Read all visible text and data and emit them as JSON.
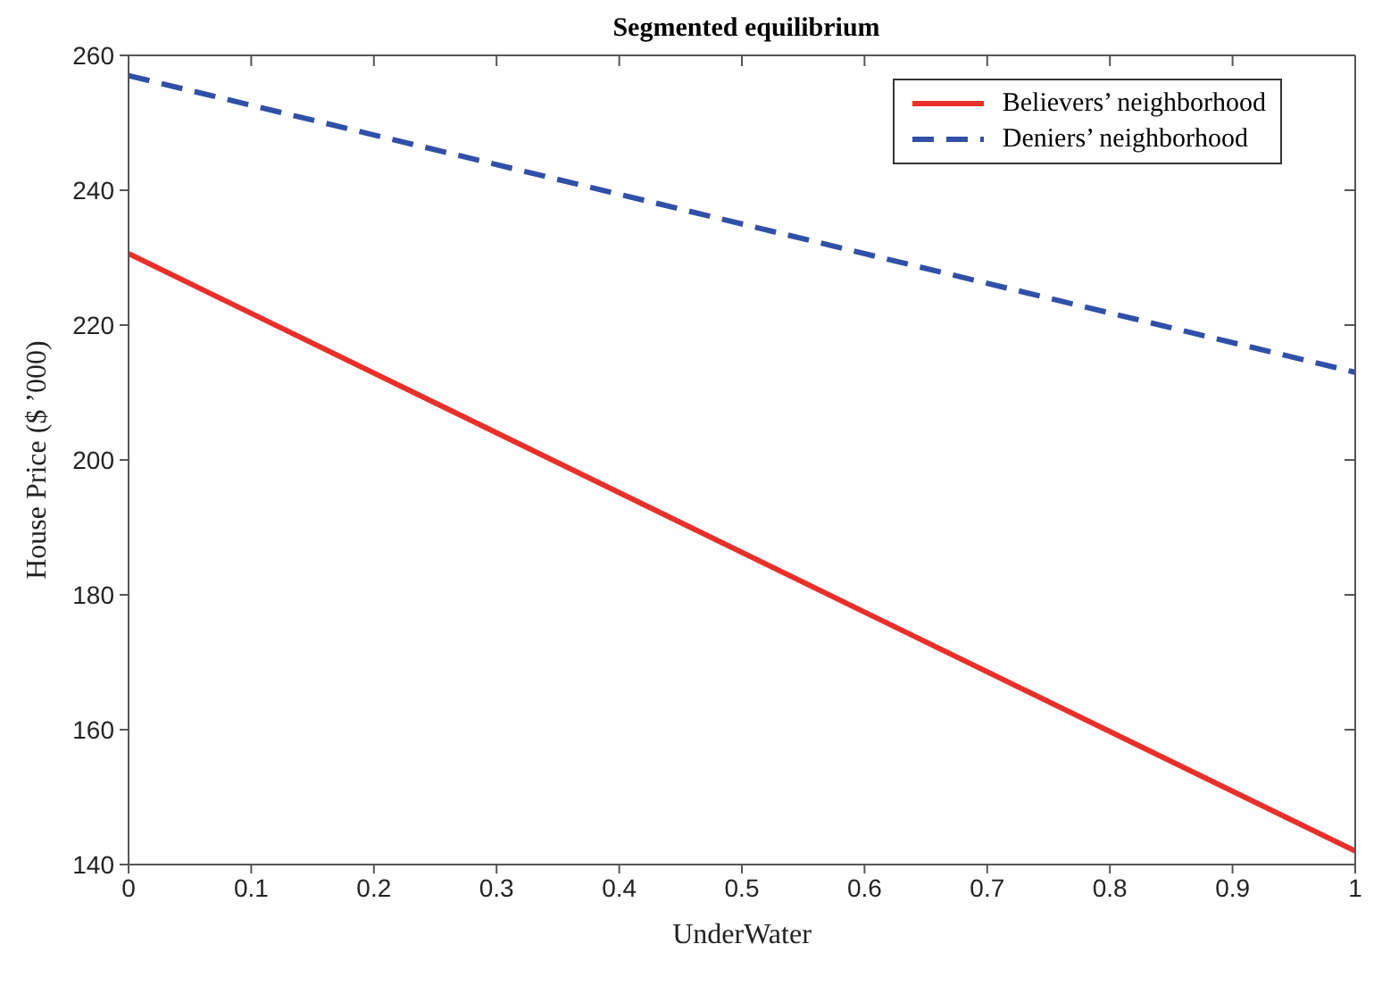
{
  "chart_data": {
    "type": "line",
    "title": "Segmented equilibrium",
    "xlabel": "UnderWater",
    "ylabel": "House Price ($ ’000)",
    "x": [
      0,
      1
    ],
    "series": [
      {
        "name": "Believers’ neighborhood",
        "color": "#e8302a",
        "values": [
          230.6,
          142
        ],
        "line_style": "solid"
      },
      {
        "name": "Deniers’ neighborhood",
        "color": "#3050a8",
        "values": [
          257,
          213
        ],
        "line_style": "dashed"
      }
    ],
    "xlim": [
      0,
      1
    ],
    "xticks": [
      0,
      0.1,
      0.2,
      0.3,
      0.4,
      0.5,
      0.6,
      0.7,
      0.8,
      0.9,
      1
    ],
    "ylim": [
      140,
      260
    ],
    "yticks": [
      140,
      160,
      180,
      200,
      220,
      240,
      260
    ],
    "grid": false,
    "legend": "top right",
    "marker": "none"
  }
}
